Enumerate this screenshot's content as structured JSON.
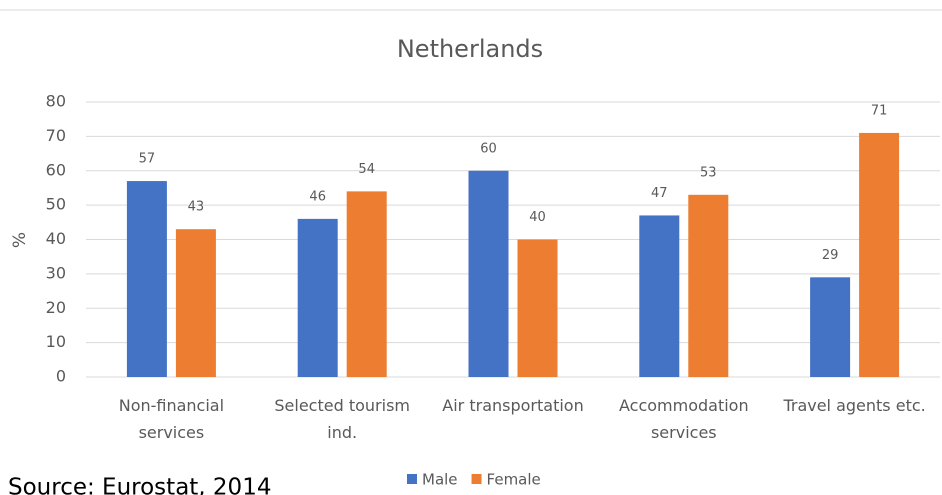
{
  "chart_data": {
    "type": "bar",
    "title": "Netherlands",
    "y_label": "%",
    "categories": [
      "Non-financial services",
      "Selected tourism ind.",
      "Air transportation",
      "Accommodation services",
      "Travel agents etc."
    ],
    "series": [
      {
        "name": "Male",
        "color": "#4472c4",
        "values": [
          57,
          46,
          60,
          47,
          29
        ]
      },
      {
        "name": "Female",
        "color": "#ed7d31",
        "values": [
          43,
          54,
          40,
          53,
          71
        ]
      }
    ],
    "ylim": [
      0,
      80
    ],
    "yticks": [
      0,
      10,
      20,
      30,
      40,
      50,
      60,
      70,
      80
    ],
    "grid": true,
    "legend": "bottom",
    "source": "Source: Eurostat, 2014"
  }
}
